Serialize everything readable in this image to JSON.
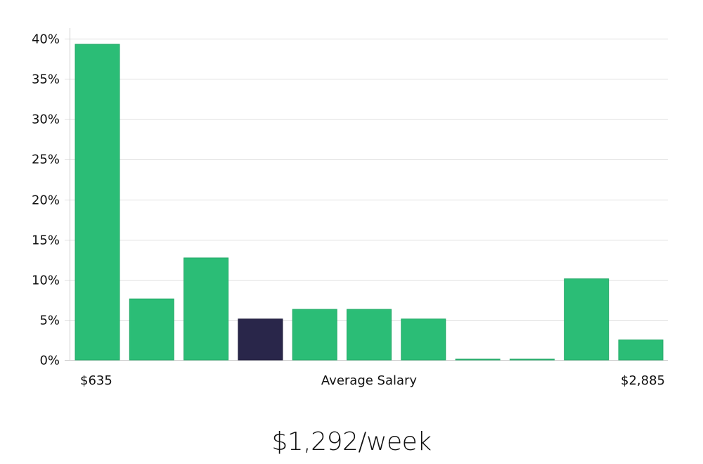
{
  "chart_data": {
    "type": "bar",
    "title": "",
    "xlabel": "Average Salary",
    "ylabel": "",
    "ylim": [
      0,
      40
    ],
    "yticks": [
      "0%",
      "5%",
      "10%",
      "15%",
      "20%",
      "25%",
      "30%",
      "35%",
      "40%"
    ],
    "x_range_labels": {
      "min": "$635",
      "max": "$2,885"
    },
    "grid": true,
    "highlight_index": 3,
    "categories": [
      "bin1",
      "bin2",
      "bin3",
      "bin4",
      "bin5",
      "bin6",
      "bin7",
      "bin8",
      "bin9",
      "bin10",
      "bin11"
    ],
    "values": [
      39.3,
      7.6,
      12.7,
      5.1,
      6.3,
      6.3,
      5.1,
      0.1,
      0.1,
      10.1,
      2.5
    ],
    "colors": {
      "bar": "#2bbd76",
      "highlight": "#29264a",
      "grid": "#e0e0e0",
      "axis": "#cccccc"
    }
  },
  "summary": {
    "value": "$1,292/week"
  }
}
